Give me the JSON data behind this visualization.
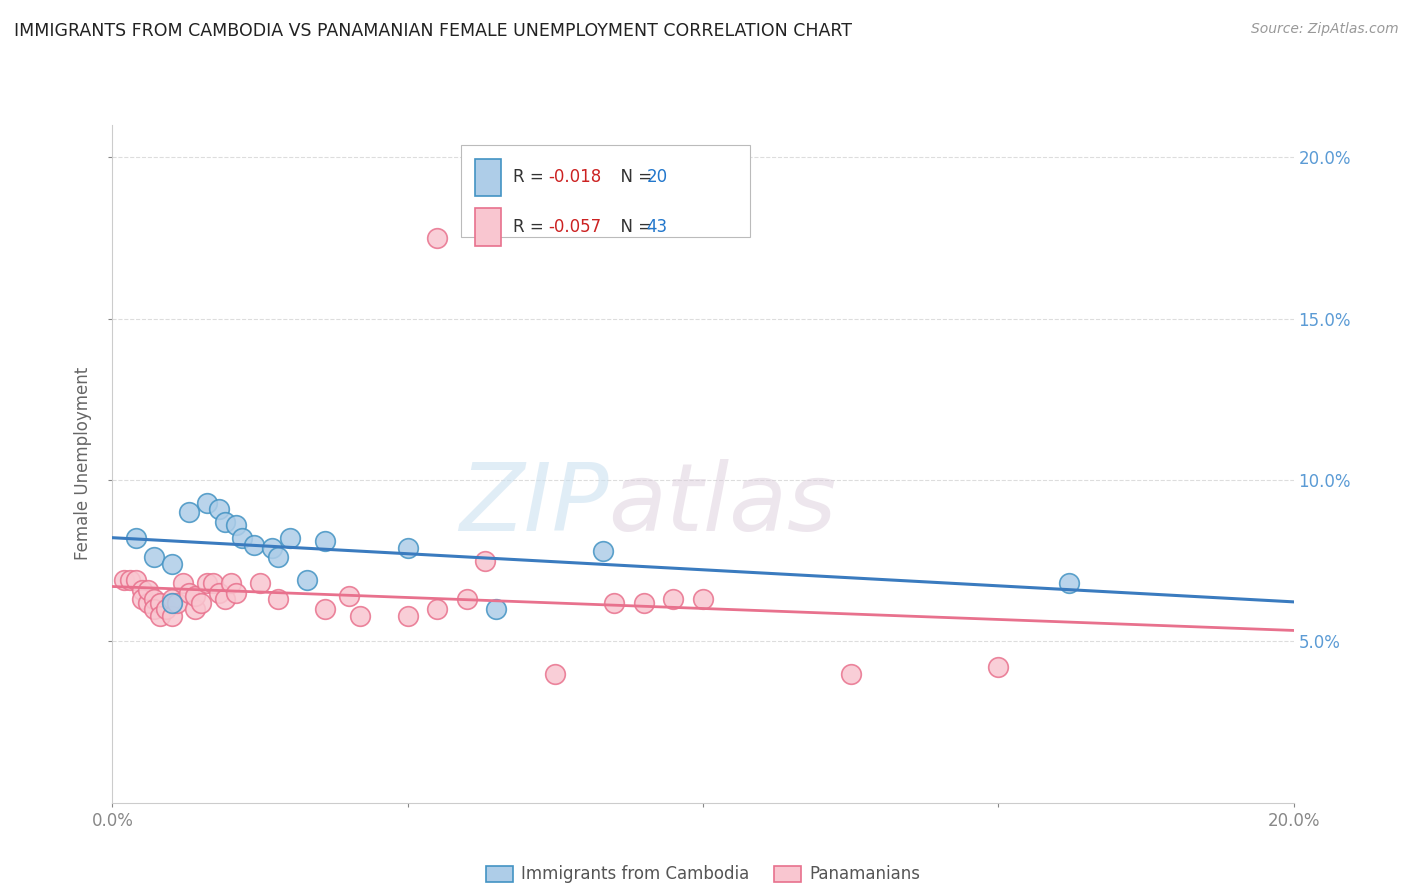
{
  "title": "IMMIGRANTS FROM CAMBODIA VS PANAMANIAN FEMALE UNEMPLOYMENT CORRELATION CHART",
  "source": "Source: ZipAtlas.com",
  "ylabel": "Female Unemployment",
  "xmin": 0.0,
  "xmax": 0.2,
  "ymin": 0.0,
  "ymax": 0.21,
  "yticks": [
    0.05,
    0.1,
    0.15,
    0.2
  ],
  "ytick_labels": [
    "5.0%",
    "10.0%",
    "15.0%",
    "20.0%"
  ],
  "legend_blue_r": "-0.018",
  "legend_blue_n": "20",
  "legend_pink_r": "-0.057",
  "legend_pink_n": "43",
  "blue_color": "#aecde8",
  "pink_color": "#f9c6d0",
  "blue_edge_color": "#4393c3",
  "pink_edge_color": "#e8718d",
  "blue_line_color": "#3a7bbf",
  "pink_line_color": "#e8718d",
  "watermark_zip": "ZIP",
  "watermark_atlas": "atlas",
  "blue_points": [
    [
      0.004,
      0.082
    ],
    [
      0.007,
      0.076
    ],
    [
      0.01,
      0.074
    ],
    [
      0.013,
      0.09
    ],
    [
      0.016,
      0.093
    ],
    [
      0.018,
      0.091
    ],
    [
      0.019,
      0.087
    ],
    [
      0.021,
      0.086
    ],
    [
      0.022,
      0.082
    ],
    [
      0.024,
      0.08
    ],
    [
      0.027,
      0.079
    ],
    [
      0.028,
      0.076
    ],
    [
      0.03,
      0.082
    ],
    [
      0.033,
      0.069
    ],
    [
      0.036,
      0.081
    ],
    [
      0.05,
      0.079
    ],
    [
      0.065,
      0.06
    ],
    [
      0.083,
      0.078
    ],
    [
      0.162,
      0.068
    ],
    [
      0.01,
      0.062
    ]
  ],
  "pink_points": [
    [
      0.002,
      0.069
    ],
    [
      0.003,
      0.069
    ],
    [
      0.004,
      0.069
    ],
    [
      0.005,
      0.066
    ],
    [
      0.005,
      0.063
    ],
    [
      0.006,
      0.062
    ],
    [
      0.006,
      0.066
    ],
    [
      0.007,
      0.063
    ],
    [
      0.007,
      0.06
    ],
    [
      0.008,
      0.062
    ],
    [
      0.008,
      0.058
    ],
    [
      0.009,
      0.06
    ],
    [
      0.01,
      0.063
    ],
    [
      0.01,
      0.058
    ],
    [
      0.011,
      0.062
    ],
    [
      0.012,
      0.068
    ],
    [
      0.013,
      0.065
    ],
    [
      0.014,
      0.06
    ],
    [
      0.014,
      0.064
    ],
    [
      0.015,
      0.062
    ],
    [
      0.016,
      0.068
    ],
    [
      0.017,
      0.068
    ],
    [
      0.018,
      0.065
    ],
    [
      0.019,
      0.063
    ],
    [
      0.02,
      0.068
    ],
    [
      0.021,
      0.065
    ],
    [
      0.025,
      0.068
    ],
    [
      0.028,
      0.063
    ],
    [
      0.036,
      0.06
    ],
    [
      0.04,
      0.064
    ],
    [
      0.042,
      0.058
    ],
    [
      0.05,
      0.058
    ],
    [
      0.055,
      0.06
    ],
    [
      0.06,
      0.063
    ],
    [
      0.063,
      0.075
    ],
    [
      0.075,
      0.04
    ],
    [
      0.085,
      0.062
    ],
    [
      0.09,
      0.062
    ],
    [
      0.095,
      0.063
    ],
    [
      0.1,
      0.063
    ],
    [
      0.125,
      0.04
    ],
    [
      0.15,
      0.042
    ],
    [
      0.055,
      0.175
    ]
  ]
}
